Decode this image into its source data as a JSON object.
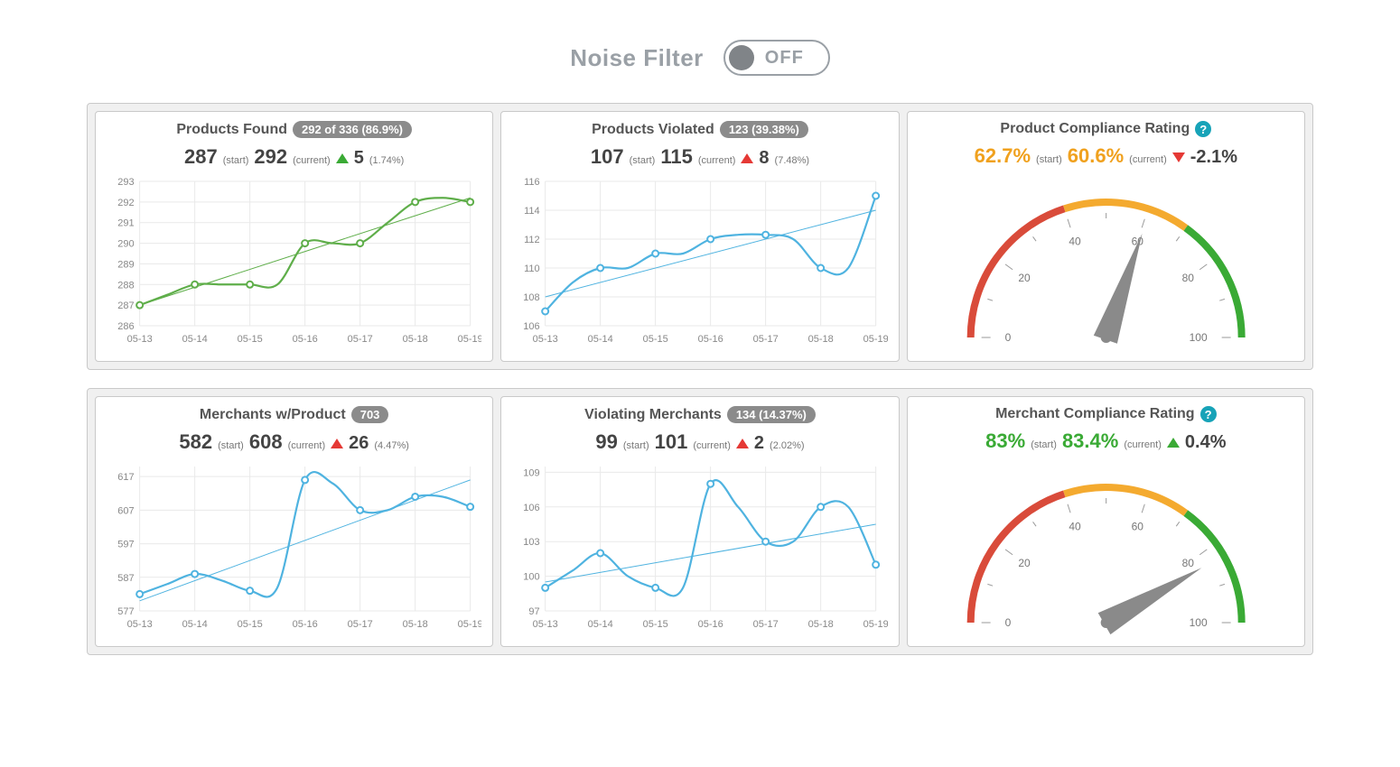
{
  "noise_filter": {
    "label": "Noise Filter",
    "state_text": "OFF"
  },
  "dates": [
    "05-13",
    "05-14",
    "05-15",
    "05-16",
    "05-17",
    "05-18",
    "05-19"
  ],
  "colors": {
    "green_line": "#5fae4a",
    "blue_line": "#4fb3e0",
    "grid": "#e9e9e9",
    "axis_text": "#888888",
    "gauge_red": "#d94b3a",
    "gauge_orange": "#f4aa2f",
    "gauge_green": "#3aaa35",
    "needle": "#8a8a8a"
  },
  "cards": {
    "products_found": {
      "title": "Products Found",
      "pill": "292 of 336 (86.9%)",
      "start": "287",
      "current": "292",
      "delta_dir": "up",
      "delta_color": "green",
      "delta": "5",
      "delta_pct": "(1.74%)",
      "chart": {
        "type": "line",
        "color_key": "green_line",
        "y_ticks": [
          286,
          287,
          288,
          289,
          290,
          291,
          292,
          293
        ],
        "ymin": 286,
        "ymax": 293,
        "x_idx": [
          0,
          1,
          2,
          3,
          4,
          5,
          6,
          7,
          8,
          9,
          10,
          11,
          12
        ],
        "values": [
          287,
          287.5,
          288,
          288,
          288,
          288,
          290,
          290,
          290,
          291,
          292,
          292.2,
          292
        ],
        "trend": [
          287,
          292.2
        ]
      }
    },
    "products_violated": {
      "title": "Products Violated",
      "pill": "123 (39.38%)",
      "start": "107",
      "current": "115",
      "delta_dir": "up",
      "delta_color": "red",
      "delta": "8",
      "delta_pct": "(7.48%)",
      "chart": {
        "type": "line",
        "color_key": "blue_line",
        "y_ticks": [
          106,
          108,
          110,
          112,
          114,
          116
        ],
        "ymin": 106,
        "ymax": 116,
        "x_idx": [
          0,
          1,
          2,
          3,
          4,
          5,
          6,
          7,
          8,
          9,
          10,
          11,
          12
        ],
        "values": [
          107,
          109,
          110,
          110,
          111,
          111,
          112,
          112.3,
          112.3,
          112,
          110,
          110,
          115
        ],
        "trend": [
          108,
          114
        ]
      }
    },
    "product_compliance": {
      "title": "Product Compliance Rating",
      "help": "?",
      "start": "62.7%",
      "current": "60.6%",
      "value_color": "orange",
      "delta_dir": "down",
      "delta_color": "red",
      "delta": "-2.1%",
      "gauge": {
        "ticks": [
          0,
          20,
          40,
          60,
          80,
          100
        ],
        "segments": [
          {
            "from": 0,
            "to": 40,
            "color_key": "gauge_red"
          },
          {
            "from": 40,
            "to": 70,
            "color_key": "gauge_orange"
          },
          {
            "from": 70,
            "to": 100,
            "color_key": "gauge_green"
          }
        ],
        "needle_value": 60.6
      }
    },
    "merchants_with_product": {
      "title": "Merchants w/Product",
      "pill": "703",
      "start": "582",
      "current": "608",
      "delta_dir": "up",
      "delta_color": "red",
      "delta": "26",
      "delta_pct": "(4.47%)",
      "chart": {
        "type": "line",
        "color_key": "blue_line",
        "y_ticks": [
          577,
          587,
          597,
          607,
          617
        ],
        "ymin": 577,
        "ymax": 620,
        "x_idx": [
          0,
          1,
          2,
          3,
          4,
          5,
          6,
          7,
          8,
          9,
          10,
          11,
          12
        ],
        "values": [
          582,
          585,
          588,
          586,
          583,
          584,
          616,
          615,
          607,
          607,
          611,
          611,
          608
        ],
        "trend": [
          580,
          616
        ]
      }
    },
    "violating_merchants": {
      "title": "Violating Merchants",
      "pill": "134 (14.37%)",
      "start": "99",
      "current": "101",
      "delta_dir": "up",
      "delta_color": "red",
      "delta": "2",
      "delta_pct": "(2.02%)",
      "chart": {
        "type": "line",
        "color_key": "blue_line",
        "y_ticks": [
          97,
          100,
          103,
          106,
          109
        ],
        "ymin": 97,
        "ymax": 109.5,
        "x_idx": [
          0,
          1,
          2,
          3,
          4,
          5,
          6,
          7,
          8,
          9,
          10,
          11,
          12
        ],
        "values": [
          99,
          100.5,
          102,
          100,
          99,
          99,
          108,
          106,
          103,
          103,
          106,
          106,
          101
        ],
        "trend": [
          99.5,
          104.5
        ]
      }
    },
    "merchant_compliance": {
      "title": "Merchant Compliance Rating",
      "help": "?",
      "start": "83%",
      "current": "83.4%",
      "value_color": "green",
      "delta_dir": "up",
      "delta_color": "green",
      "delta": "0.4%",
      "gauge": {
        "ticks": [
          0,
          20,
          40,
          60,
          80,
          100
        ],
        "segments": [
          {
            "from": 0,
            "to": 40,
            "color_key": "gauge_red"
          },
          {
            "from": 40,
            "to": 70,
            "color_key": "gauge_orange"
          },
          {
            "from": 70,
            "to": 100,
            "color_key": "gauge_green"
          }
        ],
        "needle_value": 83.4
      }
    }
  },
  "labels": {
    "start": "(start)",
    "current": "(current)"
  }
}
